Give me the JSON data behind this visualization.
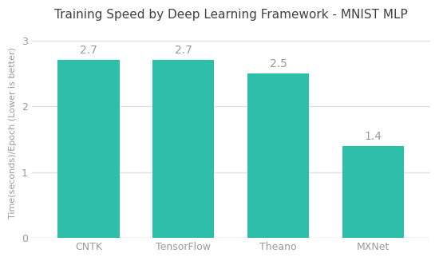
{
  "title": "Training Speed by Deep Learning Framework - MNIST MLP",
  "categories": [
    "CNTK",
    "TensorFlow",
    "Theano",
    "MXNet"
  ],
  "values": [
    2.7,
    2.7,
    2.5,
    1.4
  ],
  "bar_color": "#2DBFAA",
  "ylabel": "Time(seconds)/Epoch (Lower is better)",
  "ylim": [
    0,
    3.2
  ],
  "yticks": [
    0,
    1,
    2,
    3
  ],
  "background_color": "#ffffff",
  "grid_color": "#e0e0e0",
  "label_color": "#999999",
  "title_color": "#404040",
  "bar_label_color": "#999999",
  "bar_label_fontsize": 10,
  "title_fontsize": 11,
  "ylabel_fontsize": 8,
  "tick_fontsize": 9,
  "bar_width": 0.65
}
